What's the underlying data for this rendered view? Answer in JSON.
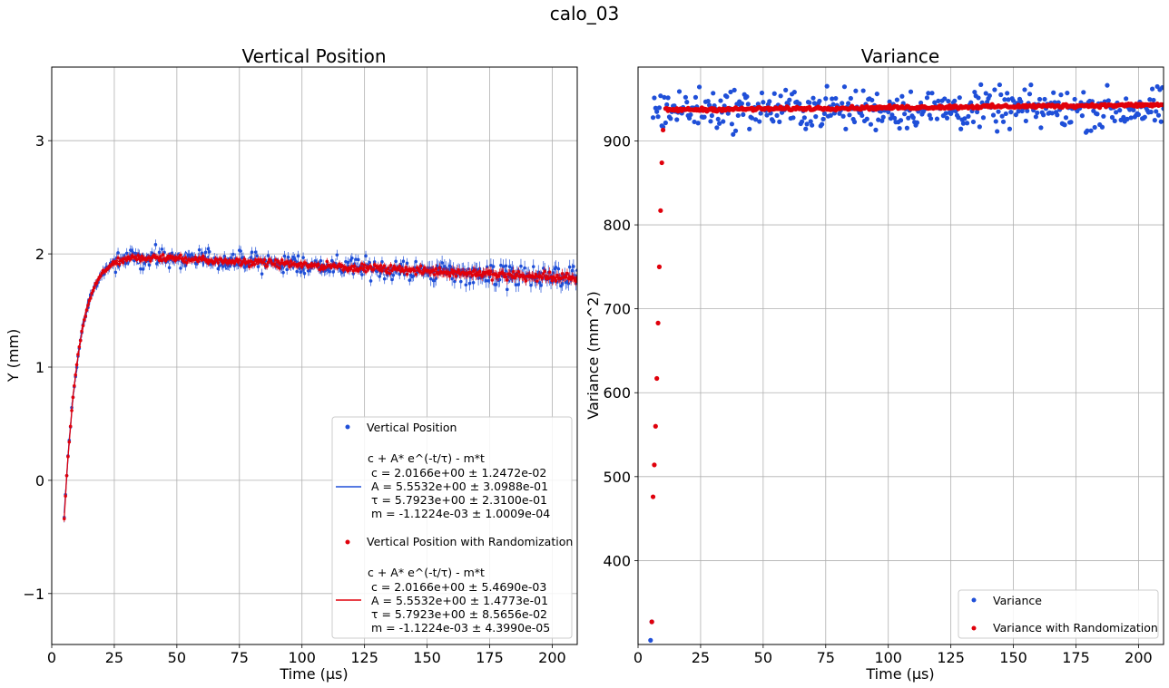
{
  "figure_title": "calo_03",
  "chart_data": [
    {
      "type": "scatter",
      "title": "Vertical Position",
      "xlabel": "Time (µs)",
      "ylabel": "Y (mm)",
      "xlim": [
        0,
        210
      ],
      "ylim": [
        -1.45,
        3.65
      ],
      "xticks": [
        0,
        25,
        50,
        75,
        100,
        125,
        150,
        175,
        200
      ],
      "yticks": [
        -1,
        0,
        1,
        2,
        3
      ],
      "grid": true,
      "legend_position": "lower-right",
      "series": [
        {
          "name": "Vertical Position",
          "color": "#1f4fd8",
          "marker": "point",
          "error_bars": true,
          "x_start": 5.0,
          "x_end": 210.0,
          "x_step": 0.5,
          "model": {
            "c": 2.0166,
            "A": 5.5532,
            "tau": 5.7923,
            "m": -0.0011224
          },
          "noise_amplitude": 0.13
        },
        {
          "name": "Vertical Position with Randomization",
          "color": "#e0000b",
          "marker": "point",
          "error_bars": true,
          "x_start": 5.0,
          "x_end": 210.0,
          "x_step": 0.5,
          "model": {
            "c": 2.0166,
            "A": 5.5532,
            "tau": 5.7923,
            "m": -0.0011224
          },
          "noise_amplitude": 0.05
        }
      ],
      "fits": [
        {
          "color": "#1f4fd8",
          "formula": "c + A* e^(-t/τ) - m*t",
          "params": [
            " c = 2.0166e+00 ± 1.2472e-02",
            " A = 5.5532e+00 ± 3.0988e-01",
            " τ = 5.7923e+00 ± 2.3100e-01",
            " m = -1.1224e-03 ± 1.0009e-04"
          ]
        },
        {
          "color": "#e0000b",
          "formula": "c + A* e^(-t/τ) - m*t",
          "params": [
            " c = 2.0166e+00 ± 5.4690e-03",
            " A = 5.5532e+00 ± 1.4773e-01",
            " τ = 5.7923e+00 ± 8.5656e-02",
            " m = -1.1224e-03 ± 4.3990e-05"
          ]
        }
      ]
    },
    {
      "type": "scatter",
      "title": "Variance",
      "xlabel": "Time (µs)",
      "ylabel": "Variance (mm^2)",
      "xlim": [
        0,
        210
      ],
      "ylim": [
        300,
        988
      ],
      "xticks": [
        0,
        25,
        50,
        75,
        100,
        125,
        150,
        175,
        200
      ],
      "yticks": [
        400,
        500,
        600,
        700,
        800,
        900
      ],
      "grid": true,
      "legend_position": "lower-right",
      "series": [
        {
          "name": "Variance",
          "color": "#1f4fd8",
          "marker": "point",
          "early_points": [
            [
              5.0,
              305
            ],
            [
              5.5,
              327
            ]
          ],
          "x_start": 6.0,
          "x_end": 210.0,
          "x_step": 0.5,
          "level": 938,
          "noise_amplitude": 30,
          "clip_max": 978
        },
        {
          "name": "Variance with Randomization",
          "color": "#e0000b",
          "marker": "point",
          "early_points": [
            [
              5.5,
              327
            ],
            [
              6.0,
              476
            ],
            [
              6.5,
              514
            ],
            [
              7.0,
              560
            ],
            [
              7.5,
              617
            ],
            [
              8.0,
              683
            ],
            [
              8.5,
              750
            ],
            [
              9.0,
              817
            ],
            [
              9.5,
              874
            ],
            [
              10.0,
              913
            ]
          ],
          "x_start": 11.0,
          "x_end": 210.0,
          "x_step": 0.5,
          "level": 937,
          "slope_per_us": 0.03,
          "noise_amplitude": 3
        }
      ]
    }
  ]
}
